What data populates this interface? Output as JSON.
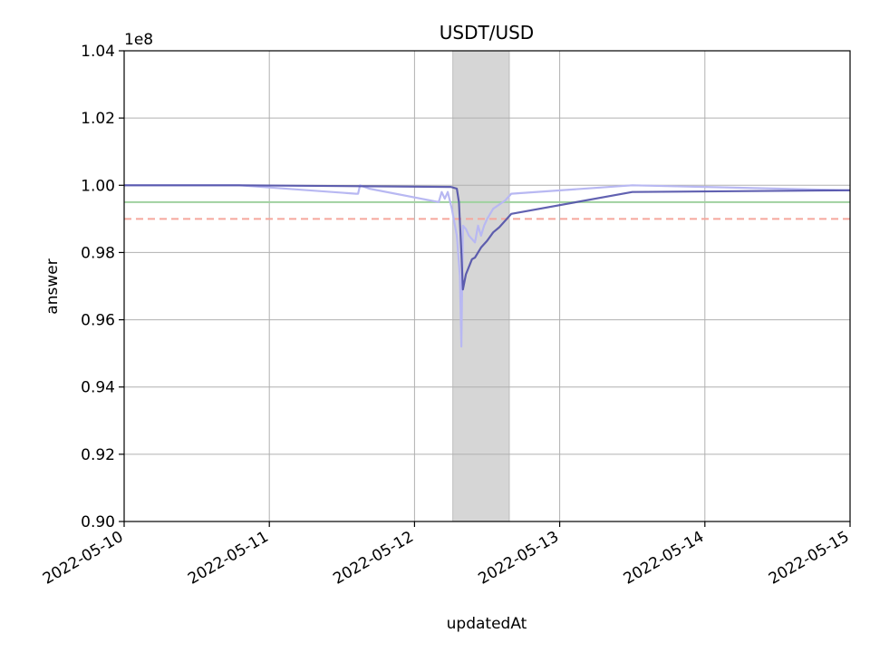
{
  "chart_data": {
    "type": "line",
    "title": "USDT/USD",
    "xlabel": "updatedAt",
    "ylabel": "answer",
    "y_offset_text": "1e8",
    "y_scale": 100000000,
    "xlim": [
      "2022-05-10",
      "2022-05-15"
    ],
    "ylim": [
      0.9,
      1.04
    ],
    "x_ticks": [
      "2022-05-10",
      "2022-05-11",
      "2022-05-12",
      "2022-05-13",
      "2022-05-14",
      "2022-05-15"
    ],
    "y_ticks": [
      0.9,
      0.92,
      0.94,
      0.96,
      0.98,
      1.0,
      1.02,
      1.04
    ],
    "y_tick_labels": [
      "0.90",
      "0.92",
      "0.94",
      "0.96",
      "0.98",
      "1.00",
      "1.02",
      "1.04"
    ],
    "grid": true,
    "shaded_region": {
      "x_start": "2022-05-12 06:20",
      "x_end": "2022-05-12 15:40",
      "color": "#d6d6d6"
    },
    "reference_lines": [
      {
        "y": 0.995,
        "color": "#9fd19f",
        "style": "solid"
      },
      {
        "y": 0.99,
        "color": "#f5a79c",
        "style": "dashed"
      }
    ],
    "series": [
      {
        "color": "#b8b8f2",
        "x": [
          "2022-05-10 00:00",
          "2022-05-10 19:00",
          "2022-05-11 14:20",
          "2022-05-11 14:40",
          "2022-05-11 15:00",
          "2022-05-11 16:30",
          "2022-05-12 04:00",
          "2022-05-12 04:30",
          "2022-05-12 05:00",
          "2022-05-12 05:30",
          "2022-05-12 06:10",
          "2022-05-12 07:00",
          "2022-05-12 07:30",
          "2022-05-12 07:45",
          "2022-05-12 08:00",
          "2022-05-12 08:30",
          "2022-05-12 09:00",
          "2022-05-12 10:00",
          "2022-05-12 10:30",
          "2022-05-12 11:00",
          "2022-05-12 11:30",
          "2022-05-12 12:00",
          "2022-05-12 13:00",
          "2022-05-12 15:00",
          "2022-05-12 16:00",
          "2022-05-13 12:00",
          "2022-05-15 00:00"
        ],
        "y": [
          1.0,
          1.0,
          0.9975,
          0.9975,
          1.0,
          0.999,
          0.995,
          0.998,
          0.996,
          0.998,
          0.993,
          0.985,
          0.973,
          0.952,
          0.988,
          0.987,
          0.985,
          0.983,
          0.988,
          0.985,
          0.988,
          0.99,
          0.993,
          0.9955,
          0.9975,
          1.0,
          0.9985
        ]
      },
      {
        "color": "#5050a8",
        "x": [
          "2022-05-10 00:00",
          "2022-05-10 19:00",
          "2022-05-12 06:00",
          "2022-05-12 07:00",
          "2022-05-12 07:20",
          "2022-05-12 07:45",
          "2022-05-12 08:00",
          "2022-05-12 08:30",
          "2022-05-12 09:30",
          "2022-05-12 10:00",
          "2022-05-12 11:00",
          "2022-05-12 12:00",
          "2022-05-12 13:00",
          "2022-05-12 14:00",
          "2022-05-12 16:00",
          "2022-05-13 12:00",
          "2022-05-15 00:00"
        ],
        "y": [
          1.0,
          1.0,
          0.9995,
          0.999,
          0.995,
          0.98,
          0.969,
          0.9735,
          0.978,
          0.9785,
          0.9815,
          0.9835,
          0.986,
          0.9875,
          0.9915,
          0.998,
          0.9985
        ]
      }
    ]
  }
}
